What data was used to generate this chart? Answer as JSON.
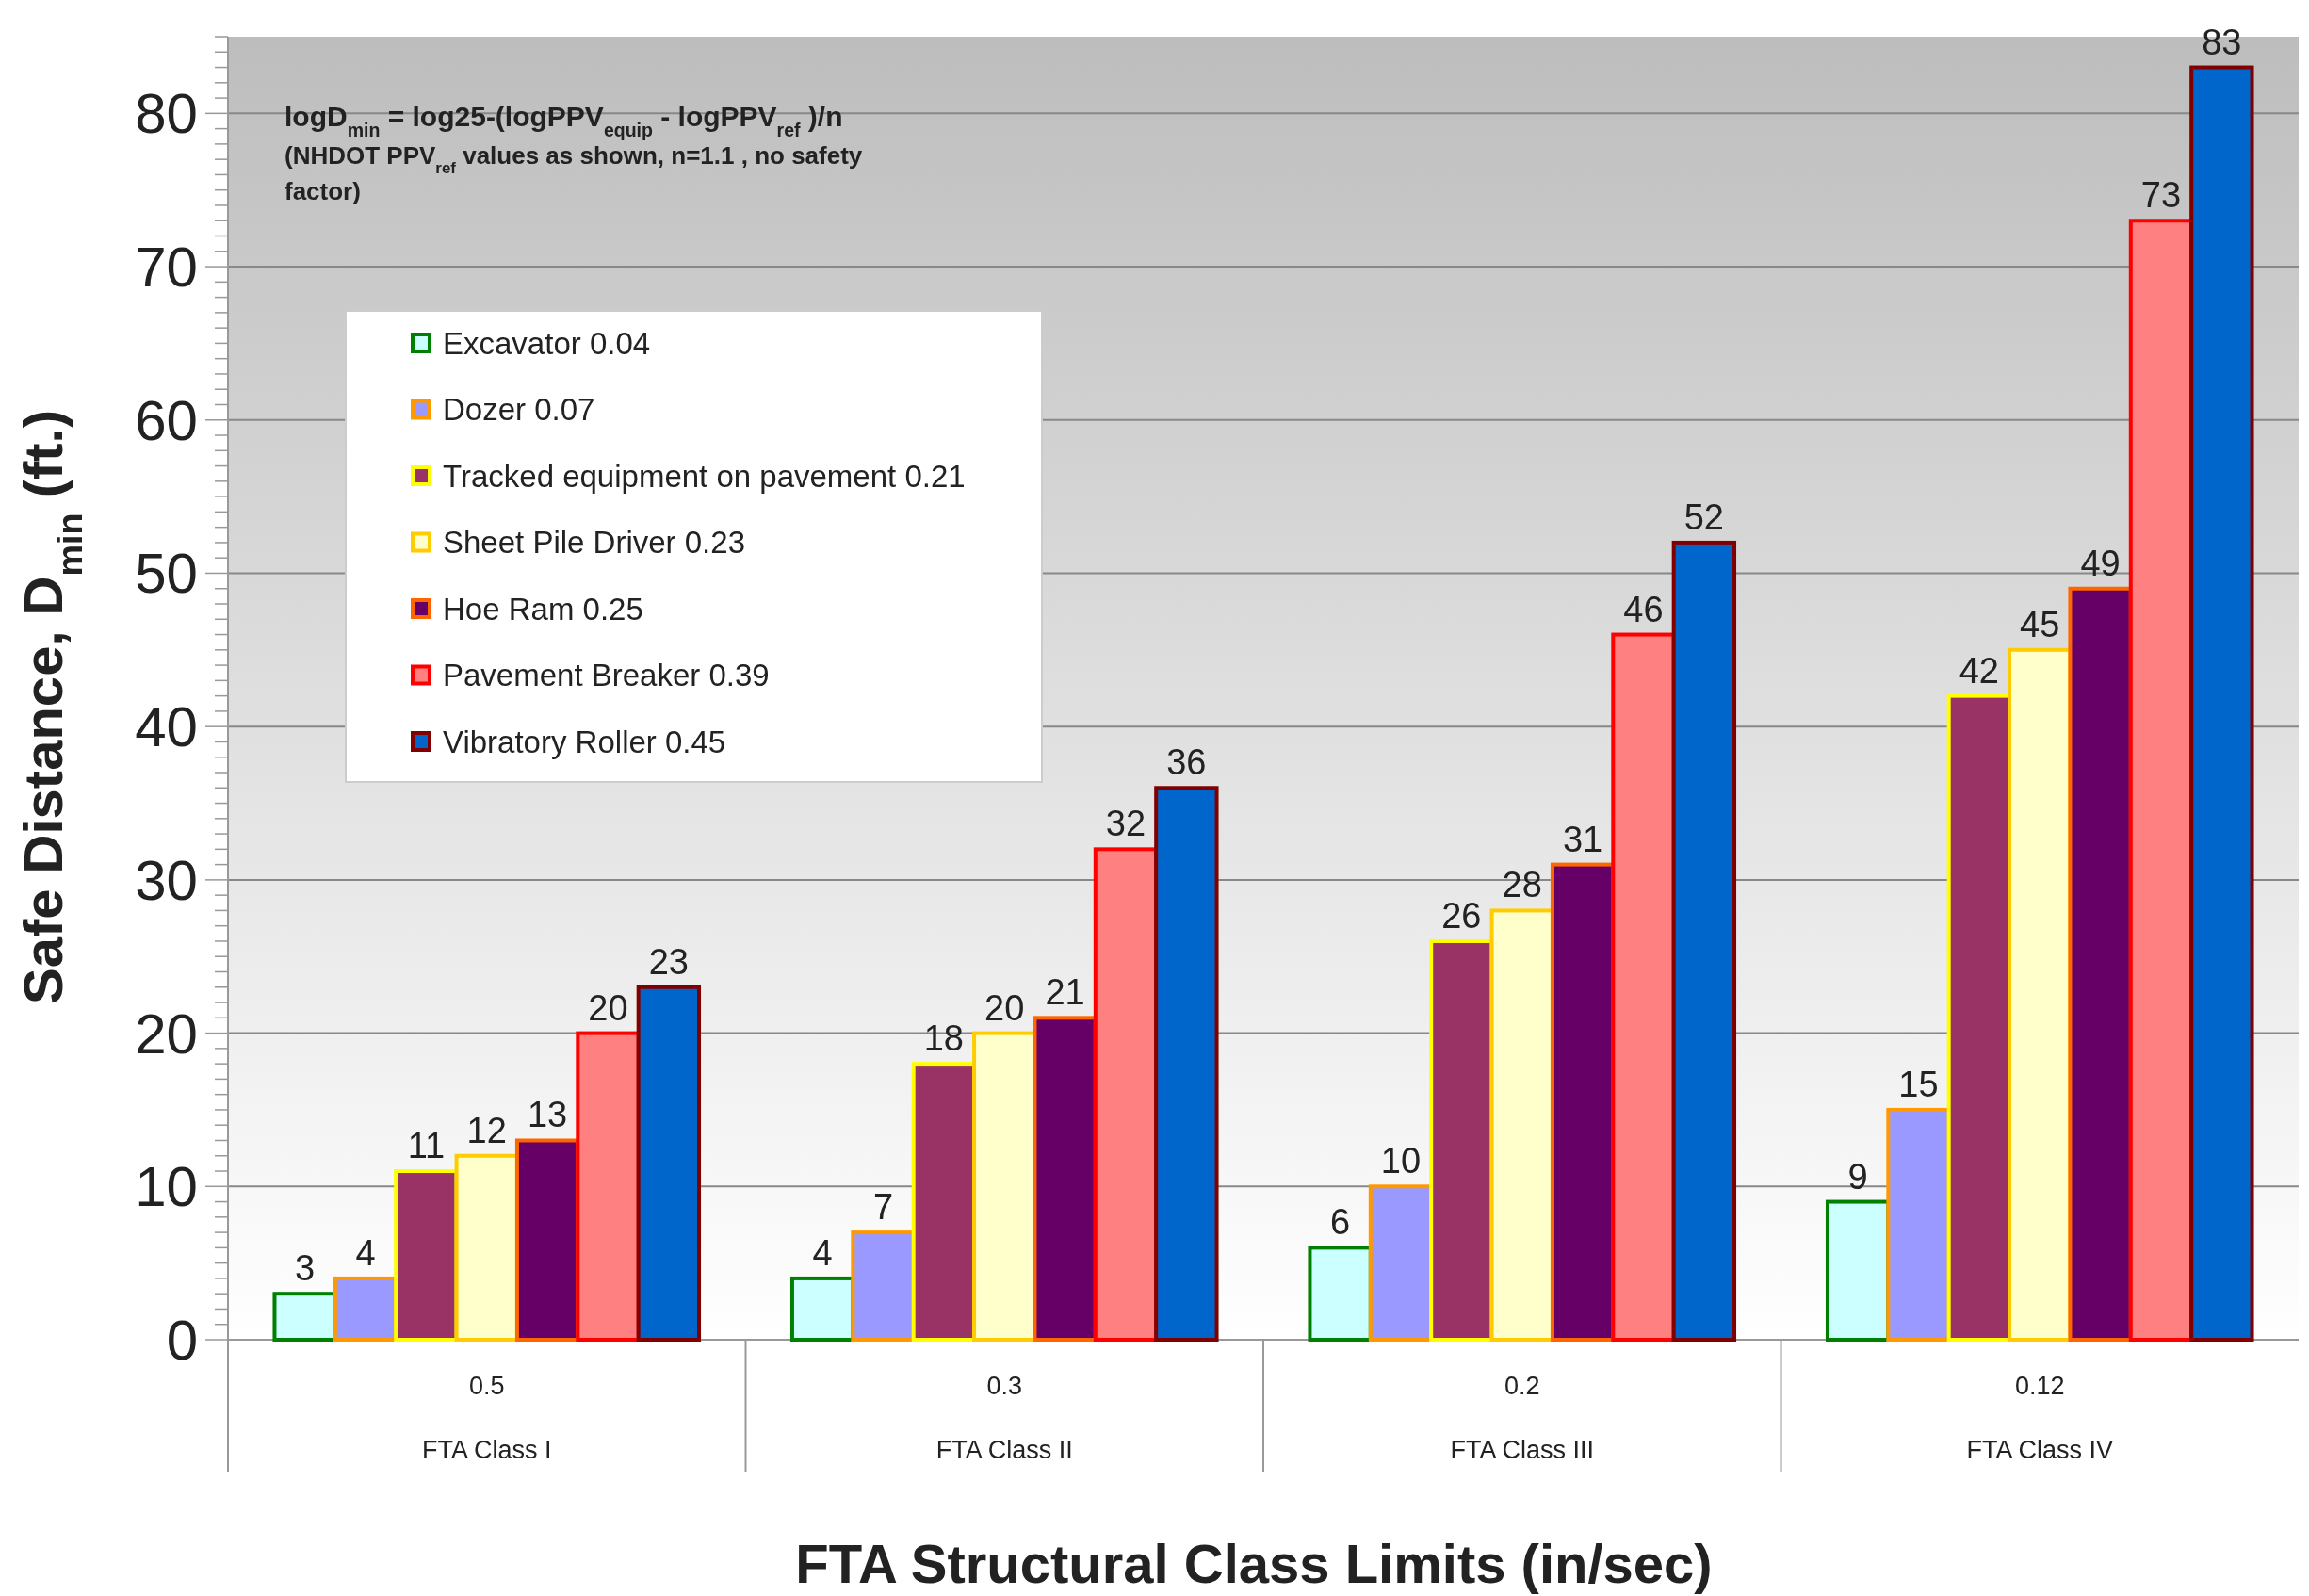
{
  "chart_data": {
    "type": "bar",
    "annotations": [
      "logD$_{min}$ = log25-(logPPV$_{equip}$ - logPPV$_{ref}$)/n",
      "(NHDOT PPV$_{ref}$ values as shown, n=1.1 , no safety factor)"
    ],
    "xlabel": "FTA Structural Class Limits (in/sec)",
    "ylabel": "Safe Distance, D$_{min}$ (ft.)",
    "categories": [
      "0.5\nFTA Class I",
      "0.3\nFTA Class II",
      "0.2\nFTA Class III",
      "0.12\nFTA Class IV"
    ],
    "series": [
      {
        "name": "Excavator 0.04",
        "color": "#ccffff",
        "values": [
          3,
          4,
          6,
          9
        ]
      },
      {
        "name": "Dozer 0.07",
        "color": "#9999ff",
        "values": [
          4,
          7,
          10,
          15
        ]
      },
      {
        "name": "Tracked equipment on pavement 0.21",
        "color": "#993366",
        "values": [
          11,
          18,
          26,
          42
        ]
      },
      {
        "name": "Sheet Pile Driver 0.23",
        "color": "#ffffcc",
        "values": [
          12,
          20,
          28,
          45
        ]
      },
      {
        "name": "Hoe Ram 0.25",
        "color": "#660066",
        "values": [
          13,
          21,
          31,
          49
        ]
      },
      {
        "name": "Pavement Breaker 0.39",
        "color": "#ff8080",
        "values": [
          20,
          32,
          46,
          73
        ]
      },
      {
        "name": "Vibratory Roller 0.45",
        "color": "#0066cc",
        "values": [
          23,
          36,
          52,
          83
        ]
      }
    ],
    "ylim": [
      0,
      85
    ],
    "yticks": [
      0,
      {
        "value": 1,
        "label": null
      },
      {
        "value": 2,
        "label": null
      },
      {
        "value": 3,
        "label": null
      },
      {
        "value": 4,
        "label": null
      },
      {
        "value": 5,
        "label": null
      },
      {
        "value": 6,
        "label": null
      },
      {
        "value": 7,
        "label": null
      },
      {
        "value": 8,
        "label": null
      },
      {
        "value": 9,
        "label": null
      },
      10,
      {
        "value": 11,
        "label": null
      },
      {
        "value": 12,
        "label": null
      },
      {
        "value": 13,
        "label": null
      },
      {
        "value": 14,
        "label": null
      },
      {
        "value": 15,
        "label": null
      },
      {
        "value": 16,
        "label": null
      },
      {
        "value": 17,
        "label": null
      },
      {
        "value": 18,
        "label": null
      },
      {
        "value": 19,
        "label": null
      },
      20,
      {
        "value": 21,
        "label": null
      },
      {
        "value": 22,
        "label": null
      },
      {
        "value": 23,
        "label": null
      },
      {
        "value": 24,
        "label": null
      },
      {
        "value": 25,
        "label": null
      },
      {
        "value": 26,
        "label": null
      },
      {
        "value": 27,
        "label": null
      },
      {
        "value": 28,
        "label": null
      },
      {
        "value": 29,
        "label": null
      },
      30,
      {
        "value": 31,
        "label": null
      },
      {
        "value": 32,
        "label": null
      },
      {
        "value": 33,
        "label": null
      },
      {
        "value": 34,
        "label": null
      },
      {
        "value": 35,
        "label": null
      },
      {
        "value": 36,
        "label": null
      },
      {
        "value": 37,
        "label": null
      },
      {
        "value": 38,
        "label": null
      },
      {
        "value": 39,
        "label": null
      },
      40,
      {
        "value": 41,
        "label": null
      },
      {
        "value": 42,
        "label": null
      },
      {
        "value": 43,
        "label": null
      },
      {
        "value": 44,
        "label": null
      },
      {
        "value": 45,
        "label": null
      },
      {
        "value": 46,
        "label": null
      },
      {
        "value": 47,
        "label": null
      },
      {
        "value": 48,
        "label": null
      },
      {
        "value": 49,
        "label": null
      },
      50,
      {
        "value": 51,
        "label": null
      },
      {
        "value": 52,
        "label": null
      },
      {
        "value": 53,
        "label": null
      },
      {
        "value": 54,
        "label": null
      },
      {
        "value": 55,
        "label": null
      },
      {
        "value": 56,
        "label": null
      },
      {
        "value": 57,
        "label": null
      },
      {
        "value": 58,
        "label": null
      },
      {
        "value": 59,
        "label": null
      },
      60,
      {
        "value": 61,
        "label": null
      },
      {
        "value": 62,
        "label": null
      },
      {
        "value": 63,
        "label": null
      },
      {
        "value": 64,
        "label": null
      },
      {
        "value": 65,
        "label": null
      },
      {
        "value": 66,
        "label": null
      },
      {
        "value": 67,
        "label": null
      },
      {
        "value": 68,
        "label": null
      },
      {
        "value": 69,
        "label": null
      },
      70,
      {
        "value": 71,
        "label": null
      },
      {
        "value": 72,
        "label": null
      },
      {
        "value": 73,
        "label": null
      },
      {
        "value": 74,
        "label": null
      },
      {
        "value": 75,
        "label": null
      },
      {
        "value": 76,
        "label": null
      },
      {
        "value": 77,
        "label": null
      },
      {
        "value": 78,
        "label": null
      },
      {
        "value": 79,
        "label": null
      },
      80,
      {
        "value": 81,
        "label": null
      },
      {
        "value": 82,
        "label": null
      },
      {
        "value": 83,
        "label": null
      },
      {
        "value": 84,
        "label": null
      },
      {
        "value": 85,
        "label": null
      }
    ],
    "grid": "y",
    "legend": "top left",
    "data_labels": true
  }
}
